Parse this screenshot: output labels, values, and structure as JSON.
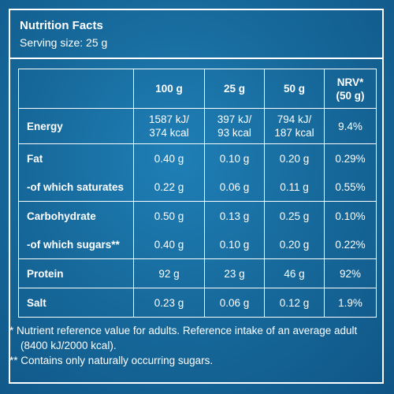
{
  "header": {
    "title": "Nutrition Facts",
    "serving": "Serving size: 25 g"
  },
  "table": {
    "columns": [
      "",
      "100 g",
      "25 g",
      "50 g",
      "NRV*",
      "(50 g)"
    ],
    "rows": [
      {
        "label": "Energy",
        "v100": [
          "1587 kJ/",
          "374 kcal"
        ],
        "v25": [
          "397 kJ/",
          "93 kcal"
        ],
        "v50": [
          "794 kJ/",
          "187 kcal"
        ],
        "nrv": "9.4%"
      },
      {
        "label": "Fat",
        "v100": "0.40 g",
        "v25": "0.10 g",
        "v50": "0.20 g",
        "nrv": "0.29%"
      },
      {
        "label": "-of which saturates",
        "v100": "0.22 g",
        "v25": "0.06 g",
        "v50": "0.11 g",
        "nrv": "0.55%"
      },
      {
        "label": "Carbohydrate",
        "v100": "0.50 g",
        "v25": "0.13 g",
        "v50": "0.25 g",
        "nrv": "0.10%"
      },
      {
        "label": "-of which sugars**",
        "v100": "0.40 g",
        "v25": "0.10 g",
        "v50": "0.20 g",
        "nrv": "0.22%"
      },
      {
        "label": "Protein",
        "v100": "92 g",
        "v25": "23 g",
        "v50": "46 g",
        "nrv": "92%"
      },
      {
        "label": "Salt",
        "v100": "0.23 g",
        "v25": "0.06 g",
        "v50": "0.12 g",
        "nrv": "1.9%"
      }
    ]
  },
  "footnotes": {
    "nrv": "* Nutrient reference value for adults. Reference intake of an average adult (8400 kJ/2000 kcal).",
    "sugars": "** Contains only naturally occurring sugars."
  },
  "colors": {
    "background": "#176a9c",
    "text": "#ffffff"
  }
}
